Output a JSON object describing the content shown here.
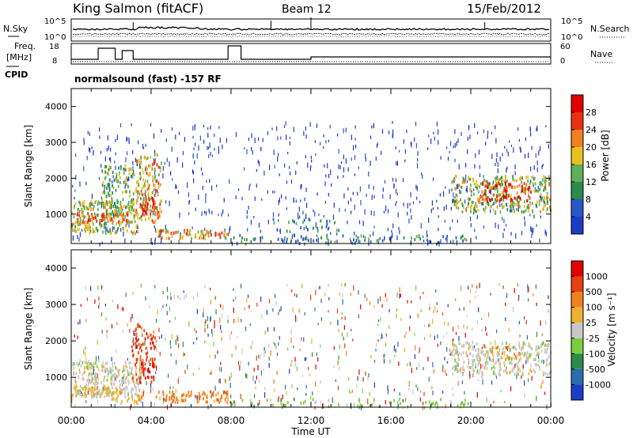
{
  "header": {
    "station": "King Salmon (fitACF)",
    "beam": "Beam 12",
    "date": "15/Feb/2012"
  },
  "status_panel": {
    "left_labels": [
      "N.Sky",
      "Freq.",
      "[MHz]",
      "CPID"
    ],
    "right_labels": [
      "N.Search",
      "Nave"
    ],
    "nsky_ticks": [
      "10^5",
      "10^0"
    ],
    "nsearch_ticks": [
      "10^5",
      "10^0"
    ],
    "freq_ticks": [
      "18",
      "8"
    ],
    "nave_ticks": [
      "60",
      "0"
    ],
    "cpid_text": "normalsound (fast) -157 RF",
    "freq_steps_hours": [
      [
        0,
        0.15
      ],
      [
        1.35,
        0.85
      ],
      [
        2.2,
        0.15
      ],
      [
        2.55,
        0.7
      ],
      [
        3.1,
        0.15
      ],
      [
        7.7,
        0.15
      ],
      [
        7.85,
        1.0
      ],
      [
        8.5,
        0.15
      ],
      [
        10.2,
        0.15
      ],
      [
        12.0,
        0.3
      ],
      [
        24,
        0.3
      ]
    ]
  },
  "chart_data": [
    {
      "type": "heatmap",
      "title": "",
      "xlabel": "",
      "ylabel": "Slant Range [km]",
      "x_ticks": [
        "00:00",
        "04:00",
        "08:00",
        "12:00",
        "16:00",
        "20:00",
        "00:00"
      ],
      "y_ticks": [
        "1000",
        "2000",
        "3000",
        "4000"
      ],
      "xlim_hours": [
        0,
        24
      ],
      "ylim_km": [
        180,
        4500
      ],
      "colorbar": {
        "label": "Power [dB]",
        "ticks": [
          "4",
          "8",
          "12",
          "16",
          "20",
          "24",
          "28"
        ],
        "colors": [
          "#1c3cc8",
          "#2a58c8",
          "#2c8a4a",
          "#5fae5a",
          "#e8c020",
          "#f08020",
          "#e83010",
          "#e00000"
        ]
      },
      "regions": [
        {
          "t": [
            0.0,
            3.3
          ],
          "r": [
            500,
            1400
          ],
          "density": 0.85,
          "level": 3.5
        },
        {
          "t": [
            0.2,
            2.8
          ],
          "r": [
            800,
            1050
          ],
          "density": 0.9,
          "level": 5.5
        },
        {
          "t": [
            1.5,
            3.8
          ],
          "r": [
            1100,
            2400
          ],
          "density": 0.5,
          "level": 3
        },
        {
          "t": [
            3.2,
            4.5
          ],
          "r": [
            800,
            2700
          ],
          "density": 0.6,
          "level": 4.5
        },
        {
          "t": [
            3.5,
            4.2
          ],
          "r": [
            1000,
            1500
          ],
          "density": 0.9,
          "level": 6
        },
        {
          "t": [
            4.2,
            8.0
          ],
          "r": [
            350,
            600
          ],
          "density": 0.85,
          "level": 4.5
        },
        {
          "t": [
            8.0,
            20.0
          ],
          "r": [
            200,
            450
          ],
          "density": 0.3,
          "level": 2
        },
        {
          "t": [
            10.0,
            13.5
          ],
          "r": [
            550,
            900
          ],
          "density": 0.25,
          "level": 2
        },
        {
          "t": [
            19.0,
            24.0
          ],
          "r": [
            1100,
            2100
          ],
          "density": 0.7,
          "level": 3.5
        },
        {
          "t": [
            20.5,
            23.0
          ],
          "r": [
            1400,
            1900
          ],
          "density": 0.6,
          "level": 6
        }
      ]
    },
    {
      "type": "heatmap",
      "title": "",
      "xlabel": "Time UT",
      "ylabel": "Slant Range [km]",
      "x_ticks": [
        "00:00",
        "04:00",
        "08:00",
        "12:00",
        "16:00",
        "20:00",
        "00:00"
      ],
      "y_ticks": [
        "1000",
        "2000",
        "3000",
        "4000"
      ],
      "xlim_hours": [
        0,
        24
      ],
      "ylim_km": [
        180,
        4500
      ],
      "colorbar": {
        "label": "Velocity [m s⁻¹]",
        "ticks": [
          "1000",
          "500",
          "100",
          "25",
          "-25",
          "-100",
          "-500",
          "-1000"
        ],
        "colors": [
          "#1c3cc8",
          "#2a6cb0",
          "#2c8a4a",
          "#7ccc40",
          "#c8c8c8",
          "#f0b030",
          "#f08020",
          "#e84010",
          "#e00000"
        ]
      },
      "regions": [
        {
          "t": [
            0.0,
            3.5
          ],
          "r": [
            500,
            1500
          ],
          "density": 0.85,
          "color": 4
        },
        {
          "t": [
            0.0,
            2.5
          ],
          "r": [
            500,
            800
          ],
          "density": 0.7,
          "color": 5
        },
        {
          "t": [
            3.0,
            4.2
          ],
          "r": [
            900,
            2500
          ],
          "density": 0.5,
          "color": 7
        },
        {
          "t": [
            3.5,
            4.1
          ],
          "r": [
            1000,
            1400
          ],
          "density": 0.8,
          "color": 8
        },
        {
          "t": [
            2.0,
            3.5
          ],
          "r": [
            300,
            700
          ],
          "density": 0.5,
          "color": 5
        },
        {
          "t": [
            4.2,
            8.0
          ],
          "r": [
            350,
            650
          ],
          "density": 0.85,
          "color": 6
        },
        {
          "t": [
            8.0,
            20.0
          ],
          "r": [
            200,
            450
          ],
          "density": 0.25,
          "color": 3
        },
        {
          "t": [
            19.0,
            24.0
          ],
          "r": [
            1100,
            2000
          ],
          "density": 0.7,
          "color": 4
        },
        {
          "t": [
            20.5,
            22.5
          ],
          "r": [
            1500,
            1900
          ],
          "density": 0.3,
          "color": 6
        }
      ]
    }
  ]
}
